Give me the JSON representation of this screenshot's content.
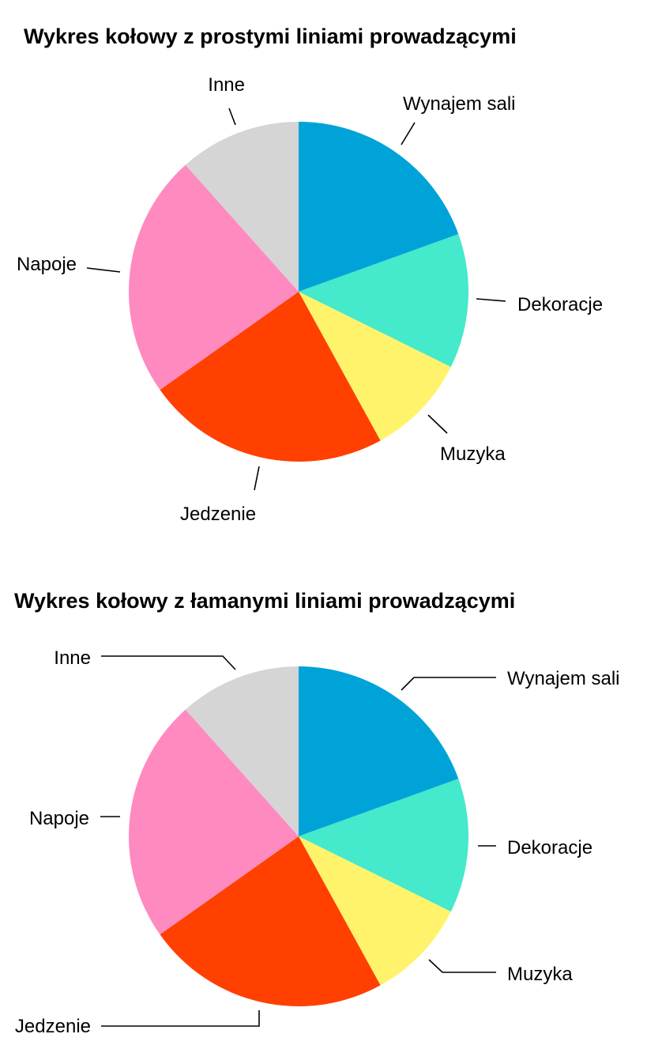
{
  "chart_data": [
    {
      "type": "pie",
      "title": "Wykres kołowy z prostymi liniami prowadzącymi",
      "leader_lines": "straight",
      "categories": [
        "Wynajem sali",
        "Dekoracje",
        "Muzyka",
        "Jedzenie",
        "Napoje",
        "Inne"
      ],
      "values": [
        19.5,
        12.8,
        9.7,
        23.2,
        23.2,
        11.6
      ],
      "colors": [
        "#00A3D8",
        "#45E9CB",
        "#FFF36B",
        "#FF4000",
        "#FF8AC0",
        "#D5D5D5"
      ]
    },
    {
      "type": "pie",
      "title": "Wykres kołowy z łamanymi liniami prowadzącymi",
      "leader_lines": "bent",
      "categories": [
        "Wynajem sali",
        "Dekoracje",
        "Muzyka",
        "Jedzenie",
        "Napoje",
        "Inne"
      ],
      "values": [
        19.5,
        12.8,
        9.7,
        23.2,
        23.2,
        11.6
      ],
      "colors": [
        "#00A3D8",
        "#45E9CB",
        "#FFF36B",
        "#FF4000",
        "#FF8AC0",
        "#D5D5D5"
      ]
    }
  ]
}
